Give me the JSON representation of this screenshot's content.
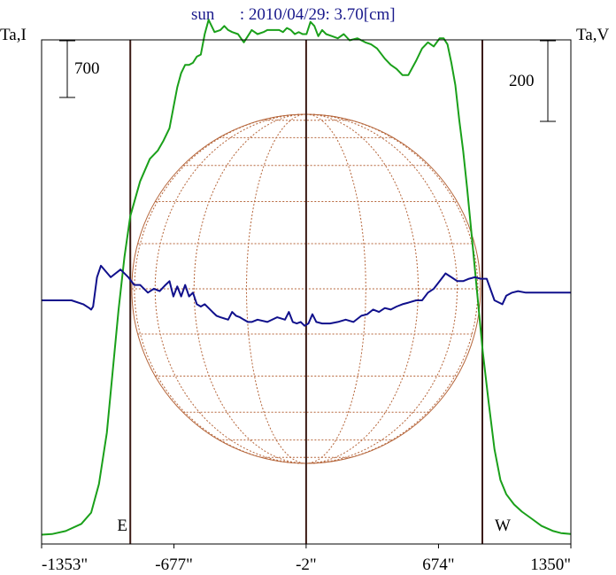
{
  "chart_data": {
    "type": "line",
    "title": "sun      : 2010/04/29: 3.70[cm]",
    "left_axis_label": "Ta,I",
    "right_axis_label": "Ta,V",
    "scale_bar_left": "700",
    "scale_bar_right": "200",
    "x_tick_labels": [
      "-1353\"",
      "-677\"",
      "-2\"",
      "674\"",
      "1350\""
    ],
    "x_tick_values": [
      -1353,
      -677,
      -2,
      674,
      1350
    ],
    "xlim": [
      -1353,
      1350
    ],
    "limb_markers": [
      {
        "label": "E",
        "x": -900
      },
      {
        "label": "W",
        "x": 898
      }
    ],
    "center_marker_x": -2,
    "solar_disk": {
      "center_x": -2,
      "radius_arcsec": 898
    },
    "colors": {
      "stokes_I": "#1aa01a",
      "stokes_V": "#10108c",
      "disk_grid": "#b5653a",
      "markers": "#3a1a14",
      "frame": "#000000"
    },
    "series": [
      {
        "key": "I",
        "x": [
          -1353,
          -1300,
          -1230,
          -1150,
          -1100,
          -1060,
          -1020,
          -990,
          -960,
          -930,
          -900,
          -850,
          -800,
          -760,
          -730,
          -700,
          -680,
          -660,
          -640,
          -620,
          -600,
          -580,
          -560,
          -540,
          -520,
          -500,
          -470,
          -440,
          -420,
          -400,
          -380,
          -350,
          -320,
          -300,
          -280,
          -250,
          -220,
          -200,
          -170,
          -140,
          -120,
          -100,
          -80,
          -60,
          -40,
          -20,
          0,
          20,
          40,
          60,
          80,
          100,
          130,
          160,
          190,
          220,
          260,
          300,
          330,
          360,
          400,
          430,
          460,
          490,
          520,
          560,
          590,
          620,
          650,
          680,
          700,
          720,
          740,
          760,
          780,
          800,
          820,
          840,
          860,
          880,
          900,
          930,
          960,
          990,
          1020,
          1060,
          1100,
          1150,
          1200,
          1260,
          1300,
          1350
        ],
        "values": [
          2,
          5,
          20,
          55,
          110,
          250,
          500,
          800,
          1100,
          1360,
          1560,
          1730,
          1840,
          1880,
          1930,
          1990,
          2090,
          2190,
          2260,
          2300,
          2300,
          2310,
          2340,
          2350,
          2450,
          2520,
          2460,
          2470,
          2490,
          2470,
          2460,
          2450,
          2410,
          2440,
          2470,
          2450,
          2460,
          2470,
          2470,
          2470,
          2460,
          2480,
          2470,
          2450,
          2460,
          2450,
          2450,
          2510,
          2490,
          2440,
          2470,
          2450,
          2440,
          2430,
          2450,
          2420,
          2430,
          2410,
          2400,
          2380,
          2330,
          2300,
          2280,
          2250,
          2250,
          2320,
          2380,
          2410,
          2390,
          2430,
          2430,
          2400,
          2310,
          2200,
          2030,
          1880,
          1700,
          1500,
          1300,
          1100,
          900,
          650,
          420,
          270,
          200,
          150,
          115,
          80,
          45,
          20,
          10,
          5
        ]
      },
      {
        "key": "V",
        "x": [
          -1353,
          -1200,
          -1140,
          -1110,
          -1100,
          -1090,
          -1070,
          -1050,
          -1000,
          -950,
          -910,
          -880,
          -850,
          -810,
          -780,
          -750,
          -720,
          -700,
          -680,
          -660,
          -640,
          -620,
          -600,
          -580,
          -560,
          -540,
          -520,
          -500,
          -480,
          -460,
          -440,
          -400,
          -380,
          -360,
          -340,
          -320,
          -300,
          -280,
          -250,
          -200,
          -150,
          -110,
          -90,
          -70,
          -50,
          -30,
          -10,
          10,
          30,
          50,
          80,
          120,
          160,
          200,
          240,
          280,
          310,
          340,
          370,
          400,
          430,
          460,
          490,
          520,
          560,
          590,
          620,
          650,
          680,
          710,
          740,
          770,
          800,
          830,
          860,
          890,
          920,
          960,
          1000,
          1020,
          1050,
          1080,
          1120,
          1200,
          1350
        ],
        "values": [
          0,
          0,
          -5,
          -10,
          -12,
          -8,
          30,
          45,
          30,
          40,
          30,
          20,
          20,
          10,
          15,
          12,
          20,
          25,
          5,
          18,
          5,
          20,
          5,
          10,
          -5,
          -8,
          -5,
          -10,
          -15,
          -20,
          -22,
          -25,
          -15,
          -20,
          -22,
          -25,
          -28,
          -28,
          -25,
          -28,
          -22,
          -25,
          -15,
          -28,
          -30,
          -28,
          -33,
          -30,
          -18,
          -28,
          -30,
          -30,
          -28,
          -25,
          -28,
          -20,
          -18,
          -12,
          -15,
          -10,
          -12,
          -8,
          -5,
          -3,
          0,
          0,
          10,
          15,
          25,
          35,
          30,
          25,
          25,
          28,
          30,
          28,
          28,
          0,
          -5,
          6,
          10,
          12,
          10,
          10,
          10
        ]
      }
    ]
  }
}
